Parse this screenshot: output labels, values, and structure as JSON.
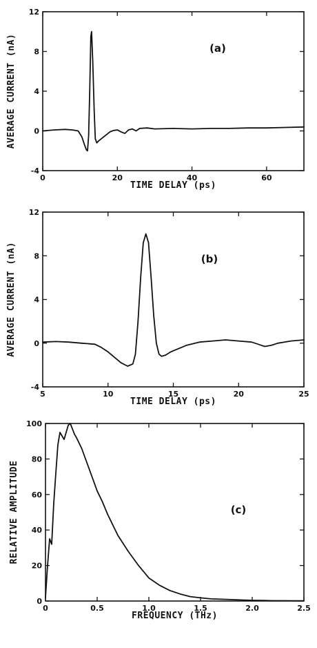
{
  "chart_data": [
    {
      "type": "line",
      "panel_label": "(a)",
      "xlabel": "TIME DELAY (ps)",
      "ylabel": "AVERAGE CURRENT (nA)",
      "xlim": [
        0,
        70
      ],
      "ylim": [
        -4,
        12
      ],
      "xticks": [
        0,
        20,
        40,
        60
      ],
      "yticks": [
        -4,
        0,
        4,
        8,
        12
      ],
      "tick_labels_x": [
        "0",
        "20",
        "40",
        "60"
      ],
      "tick_labels_y": [
        "-4",
        "0",
        "4",
        "8",
        "12"
      ],
      "series": [
        {
          "x": [
            0,
            3,
            6,
            8,
            9.5,
            10.5,
            11.2,
            11.7,
            12,
            12.3,
            12.6,
            12.9,
            13.1,
            13.4,
            13.8,
            14.1,
            14.5,
            15,
            16,
            17,
            18,
            19,
            20,
            21,
            22,
            23,
            24,
            25,
            26,
            28,
            30,
            35,
            40,
            45,
            50,
            55,
            60,
            65,
            70
          ],
          "y": [
            0,
            0.1,
            0.15,
            0.1,
            0,
            -0.6,
            -1.4,
            -1.9,
            -2,
            -0.5,
            4,
            9.5,
            10,
            7,
            2,
            -0.8,
            -1.2,
            -1,
            -0.7,
            -0.4,
            -0.1,
            0.05,
            0.1,
            -0.1,
            -0.25,
            0.1,
            0.2,
            0,
            0.25,
            0.3,
            0.2,
            0.25,
            0.2,
            0.25,
            0.25,
            0.3,
            0.3,
            0.35,
            0.4
          ]
        }
      ]
    },
    {
      "type": "line",
      "panel_label": "(b)",
      "xlabel": "TIME DELAY (ps)",
      "ylabel": "AVERAGE CURRENT (nA)",
      "xlim": [
        5,
        25
      ],
      "ylim": [
        -4,
        12
      ],
      "xticks": [
        5,
        10,
        15,
        20,
        25
      ],
      "yticks": [
        -4,
        0,
        4,
        8,
        12
      ],
      "tick_labels_x": [
        "5",
        "10",
        "15",
        "20",
        "25"
      ],
      "tick_labels_y": [
        "-4",
        "0",
        "4",
        "8",
        "12"
      ],
      "series": [
        {
          "x": [
            5,
            6,
            7,
            8,
            9,
            9.5,
            10,
            10.5,
            11,
            11.5,
            11.9,
            12.1,
            12.3,
            12.5,
            12.7,
            12.9,
            13.1,
            13.3,
            13.5,
            13.7,
            13.9,
            14.1,
            14.4,
            14.8,
            15.2,
            16,
            17,
            18,
            19,
            20,
            21,
            21.5,
            22,
            22.5,
            23,
            24,
            25
          ],
          "y": [
            0.1,
            0.15,
            0.1,
            0,
            -0.1,
            -0.4,
            -0.8,
            -1.3,
            -1.8,
            -2.1,
            -1.9,
            -1,
            2,
            6,
            9.2,
            10,
            9.2,
            6,
            2.5,
            0,
            -1,
            -1.2,
            -1.1,
            -0.8,
            -0.6,
            -0.2,
            0.1,
            0.2,
            0.3,
            0.2,
            0.1,
            -0.1,
            -0.3,
            -0.2,
            0,
            0.2,
            0.3
          ]
        }
      ]
    },
    {
      "type": "line",
      "panel_label": "(c)",
      "xlabel": "FREQUENCY (THz)",
      "ylabel": "RELATIVE AMPLITUDE",
      "xlim": [
        0,
        2.5
      ],
      "ylim": [
        0,
        100
      ],
      "xticks": [
        0,
        0.5,
        1.0,
        1.5,
        2.0,
        2.5
      ],
      "yticks": [
        0,
        20,
        40,
        60,
        80,
        100
      ],
      "tick_labels_x": [
        "0",
        "0.5",
        "1.0",
        "1.5",
        "2.0",
        "2.5"
      ],
      "tick_labels_y": [
        "0",
        "20",
        "40",
        "60",
        "80",
        "100"
      ],
      "series": [
        {
          "x": [
            0,
            0.02,
            0.04,
            0.06,
            0.08,
            0.1,
            0.12,
            0.14,
            0.16,
            0.18,
            0.2,
            0.22,
            0.24,
            0.26,
            0.28,
            0.3,
            0.35,
            0.4,
            0.45,
            0.5,
            0.55,
            0.6,
            0.7,
            0.8,
            0.9,
            1.0,
            1.1,
            1.2,
            1.3,
            1.4,
            1.5,
            1.6,
            1.7,
            1.8,
            1.9,
            2.0,
            2.1,
            2.2,
            2.3,
            2.4,
            2.5
          ],
          "y": [
            2,
            20,
            35,
            32,
            55,
            72,
            88,
            95,
            93,
            91,
            95,
            99,
            100,
            97,
            94,
            92,
            86,
            78,
            70,
            62,
            56,
            49,
            37,
            28,
            20,
            13,
            9,
            6,
            4,
            2.5,
            1.8,
            1.2,
            1,
            0.8,
            0.6,
            0.4,
            0.3,
            0.2,
            0.2,
            0.1,
            0.1
          ]
        }
      ]
    }
  ]
}
